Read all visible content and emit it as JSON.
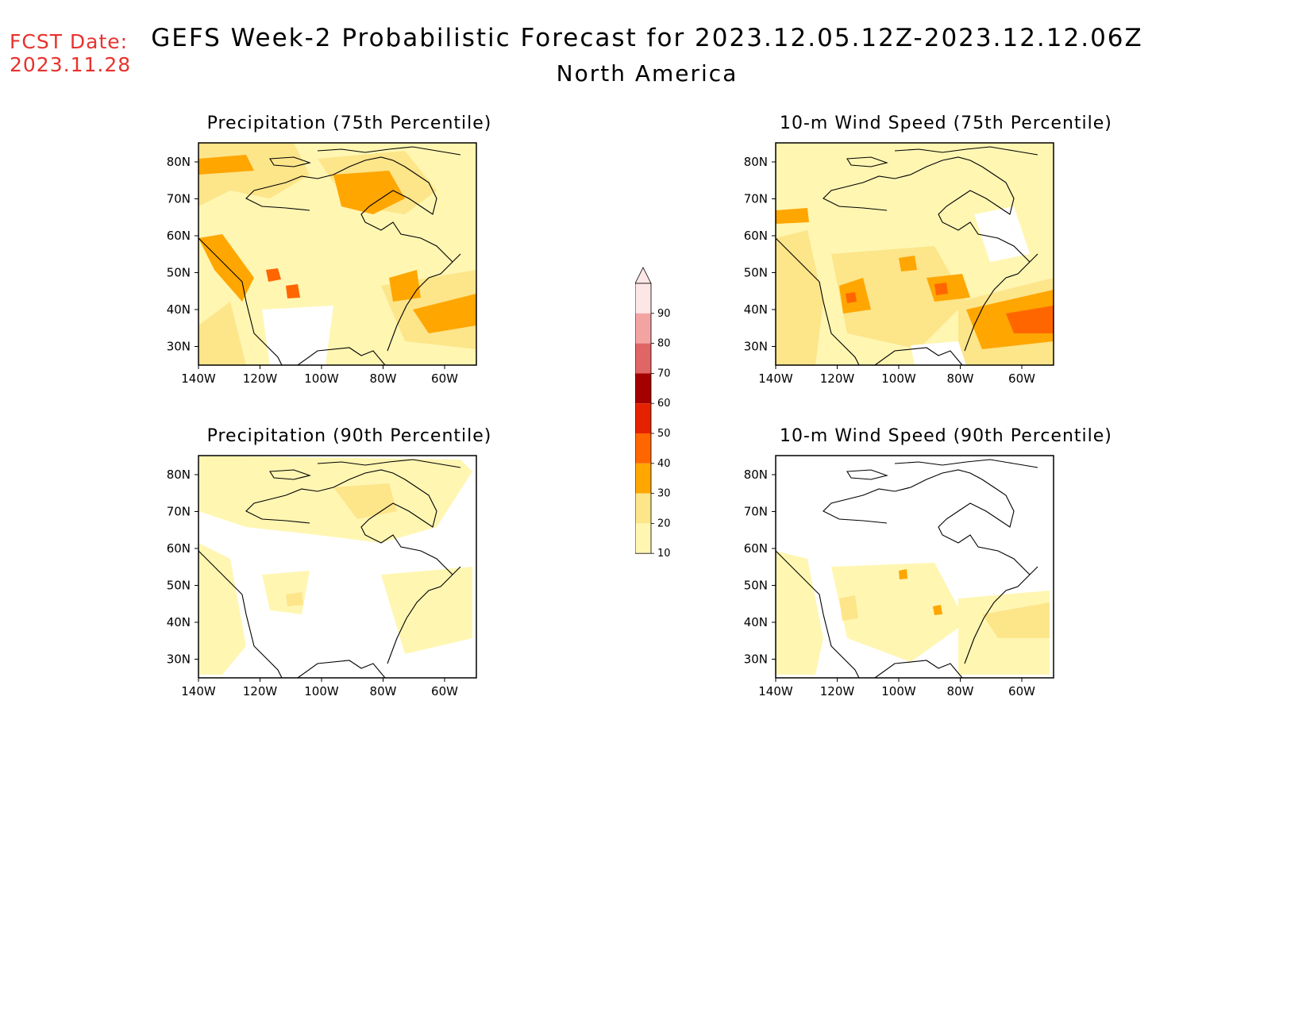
{
  "header": {
    "fcst_label": "FCST Date:",
    "fcst_date": "2023.11.28",
    "title": "GEFS Week-2 Probabilistic Forecast for 2023.12.05.12Z-2023.12.12.06Z",
    "region": "North America"
  },
  "axes": {
    "lat_labels": [
      "80N",
      "70N",
      "60N",
      "50N",
      "40N",
      "30N"
    ],
    "lon_labels": [
      "140W",
      "120W",
      "100W",
      "80W",
      "60W"
    ]
  },
  "panels": [
    {
      "title": "Precipitation (75th Percentile)",
      "level": "high-precip"
    },
    {
      "title": "10-m Wind Speed (75th Percentile)",
      "level": "high-wind"
    },
    {
      "title": "Precipitation (90th Percentile)",
      "level": "low-precip"
    },
    {
      "title": "10-m Wind Speed (90th Percentile)",
      "level": "low-wind"
    }
  ],
  "colorbar": {
    "levels": [
      "10",
      "20",
      "30",
      "40",
      "50",
      "60",
      "70",
      "80",
      "90"
    ],
    "colors": [
      "#fff6b2",
      "#fde58a",
      "#ffa600",
      "#ff6600",
      "#e52200",
      "#a50000",
      "#e06565",
      "#f4a3a3",
      "#fde6e6"
    ]
  }
}
